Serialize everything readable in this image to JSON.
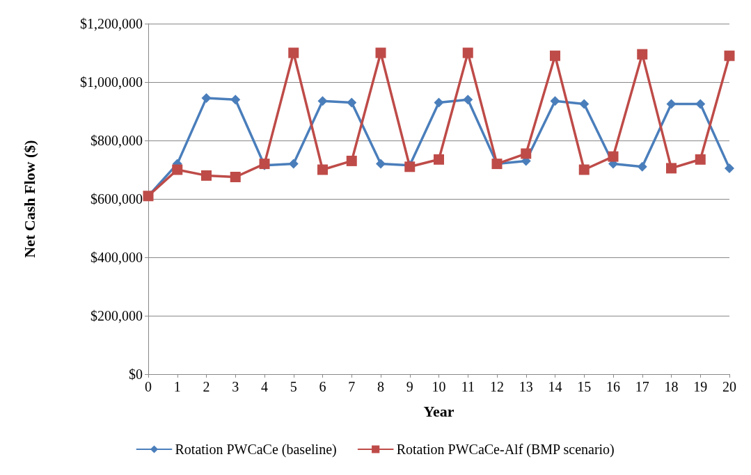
{
  "chart_data": {
    "type": "line",
    "xlabel": "Year",
    "ylabel": "Net Cash Flow ($)",
    "x": [
      0,
      1,
      2,
      3,
      4,
      5,
      6,
      7,
      8,
      9,
      10,
      11,
      12,
      13,
      14,
      15,
      16,
      17,
      18,
      19,
      20
    ],
    "xlim": [
      0,
      20
    ],
    "xticks": [
      0,
      1,
      2,
      3,
      4,
      5,
      6,
      7,
      8,
      9,
      10,
      11,
      12,
      13,
      14,
      15,
      16,
      17,
      18,
      19,
      20
    ],
    "ylim": [
      0,
      1200000
    ],
    "yticks": [
      {
        "value": 0,
        "label": "$0"
      },
      {
        "value": 200000,
        "label": "$200,000"
      },
      {
        "value": 400000,
        "label": "$400,000"
      },
      {
        "value": 600000,
        "label": "$600,000"
      },
      {
        "value": 800000,
        "label": "$800,000"
      },
      {
        "value": 1000000,
        "label": "$1,000,000"
      },
      {
        "value": 1200000,
        "label": "$1,200,000"
      }
    ],
    "grid": "y",
    "legend": "bottom",
    "line_style": "solid",
    "series": [
      {
        "name": "Rotation PWCaCe (baseline)",
        "color": "#4a7ebb",
        "marker": "diamond",
        "values": [
          610000,
          720000,
          945000,
          940000,
          715000,
          720000,
          935000,
          930000,
          720000,
          715000,
          930000,
          940000,
          720000,
          730000,
          935000,
          925000,
          720000,
          710000,
          925000,
          925000,
          705000
        ]
      },
      {
        "name": "Rotation PWCaCe-Alf (BMP scenario)",
        "color": "#be4b48",
        "marker": "square",
        "values": [
          610000,
          700000,
          680000,
          675000,
          720000,
          1100000,
          700000,
          730000,
          1100000,
          710000,
          735000,
          1100000,
          720000,
          755000,
          1090000,
          700000,
          745000,
          1095000,
          705000,
          735000,
          1090000
        ]
      }
    ]
  }
}
